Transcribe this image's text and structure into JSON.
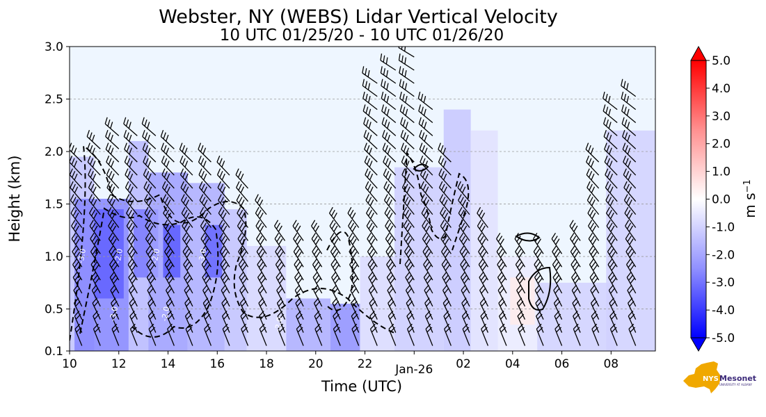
{
  "chart_data": {
    "type": "heatmap",
    "title": "Webster, NY (WEBS) Lidar Vertical Velocity",
    "subtitle": "10 UTC 01/25/20 - 10 UTC 01/26/20",
    "xlabel": "Time (UTC)",
    "ylabel": "Height (km)",
    "x_ticks": [
      "10",
      "12",
      "14",
      "16",
      "18",
      "20",
      "22",
      "Jan-26",
      "02",
      "04",
      "06",
      "08"
    ],
    "x_tick_hours": [
      0,
      2,
      4,
      6,
      8,
      10,
      12,
      14,
      16,
      18,
      20,
      22
    ],
    "xlim": [
      0,
      23.8
    ],
    "y_ticks": [
      "0.1",
      "0.5",
      "1.0",
      "1.5",
      "2.0",
      "2.5",
      "3.0"
    ],
    "y_tick_values": [
      0.1,
      0.5,
      1.0,
      1.5,
      2.0,
      2.5,
      3.0
    ],
    "ylim": [
      0.1,
      3.0
    ],
    "gridlines_y": [
      0.5,
      1.0,
      1.5,
      2.0,
      2.5
    ],
    "colorbar": {
      "label": "m s",
      "label_sup": "−1",
      "ticks": [
        "5.0",
        "4.0",
        "3.0",
        "2.0",
        "1.0",
        "0.0",
        "-1.0",
        "-2.0",
        "-3.0",
        "-4.0",
        "-5.0"
      ],
      "tick_values": [
        5,
        4,
        3,
        2,
        1,
        0,
        -1,
        -2,
        -3,
        -4,
        -5
      ],
      "range": [
        -5,
        5
      ],
      "color_max": "#ff0000",
      "color_zero": "#ffffff",
      "color_min": "#0000ff"
    },
    "contour_labels": [
      "-3.0",
      "-2.0",
      "-2.0",
      "-3.0",
      "-3.0",
      "-2.0",
      "-2.0"
    ],
    "velocity_regions": [
      {
        "t0": 0.0,
        "t1": 1.0,
        "h0": 0.1,
        "h1": 1.95,
        "w": -1.2
      },
      {
        "t0": 0.2,
        "t1": 2.4,
        "h0": 0.1,
        "h1": 1.55,
        "w": -2.4
      },
      {
        "t0": 1.0,
        "t1": 2.2,
        "h0": 0.6,
        "h1": 1.45,
        "w": -3.1
      },
      {
        "t0": 2.4,
        "t1": 3.2,
        "h0": 0.1,
        "h1": 2.1,
        "w": -1.4
      },
      {
        "t0": 2.6,
        "t1": 3.6,
        "h0": 0.8,
        "h1": 1.45,
        "w": -2.6
      },
      {
        "t0": 3.2,
        "t1": 4.8,
        "h0": 0.1,
        "h1": 1.8,
        "w": -1.9
      },
      {
        "t0": 3.8,
        "t1": 4.5,
        "h0": 0.8,
        "h1": 1.3,
        "w": -3.2
      },
      {
        "t0": 4.8,
        "t1": 6.3,
        "h0": 0.1,
        "h1": 1.7,
        "w": -1.6
      },
      {
        "t0": 5.5,
        "t1": 6.2,
        "h0": 0.8,
        "h1": 1.3,
        "w": -3.0
      },
      {
        "t0": 6.3,
        "t1": 7.2,
        "h0": 0.1,
        "h1": 1.45,
        "w": -1.2
      },
      {
        "t0": 7.2,
        "t1": 8.8,
        "h0": 0.1,
        "h1": 1.1,
        "w": -0.8
      },
      {
        "t0": 8.8,
        "t1": 10.6,
        "h0": 0.1,
        "h1": 0.6,
        "w": -1.6
      },
      {
        "t0": 10.6,
        "t1": 11.8,
        "h0": 0.1,
        "h1": 0.55,
        "w": -2.2
      },
      {
        "t0": 11.8,
        "t1": 13.2,
        "h0": 0.1,
        "h1": 1.0,
        "w": -0.7
      },
      {
        "t0": 13.2,
        "t1": 15.2,
        "h0": 0.1,
        "h1": 1.85,
        "w": -1.0
      },
      {
        "t0": 15.2,
        "t1": 16.3,
        "h0": 0.1,
        "h1": 2.4,
        "w": -1.1
      },
      {
        "t0": 16.3,
        "t1": 17.4,
        "h0": 0.1,
        "h1": 2.2,
        "w": -0.6
      },
      {
        "t0": 17.4,
        "t1": 19.0,
        "h0": 0.1,
        "h1": 1.0,
        "w": -0.4
      },
      {
        "t0": 19.0,
        "t1": 22.2,
        "h0": 0.1,
        "h1": 0.75,
        "w": -0.9
      },
      {
        "t0": 21.8,
        "t1": 23.8,
        "h0": 0.1,
        "h1": 2.2,
        "w": -0.9
      },
      {
        "t0": 17.9,
        "t1": 18.9,
        "h0": 0.35,
        "h1": 0.8,
        "w": 0.4
      }
    ],
    "wind_barb_times": [
      0.5,
      1.25,
      2.0,
      2.75,
      3.5,
      4.25,
      5.0,
      5.75,
      6.5,
      7.25,
      8.0,
      8.75,
      9.5,
      10.25,
      11.0,
      11.75,
      12.5,
      13.25,
      14.0,
      14.75,
      15.5,
      16.25,
      17.0,
      17.75,
      18.5,
      19.25,
      20.0,
      20.75,
      21.5,
      22.25,
      23.0
    ],
    "wind_barb_top_heights": [
      2.0,
      2.1,
      2.2,
      2.2,
      2.2,
      2.1,
      2.0,
      1.9,
      1.8,
      1.7,
      1.5,
      1.2,
      1.2,
      1.2,
      1.3,
      1.3,
      2.7,
      2.8,
      2.9,
      2.4,
      2.0,
      1.6,
      1.3,
      1.1,
      1.1,
      1.1,
      1.1,
      1.2,
      1.9,
      2.4,
      2.6
    ]
  }
}
